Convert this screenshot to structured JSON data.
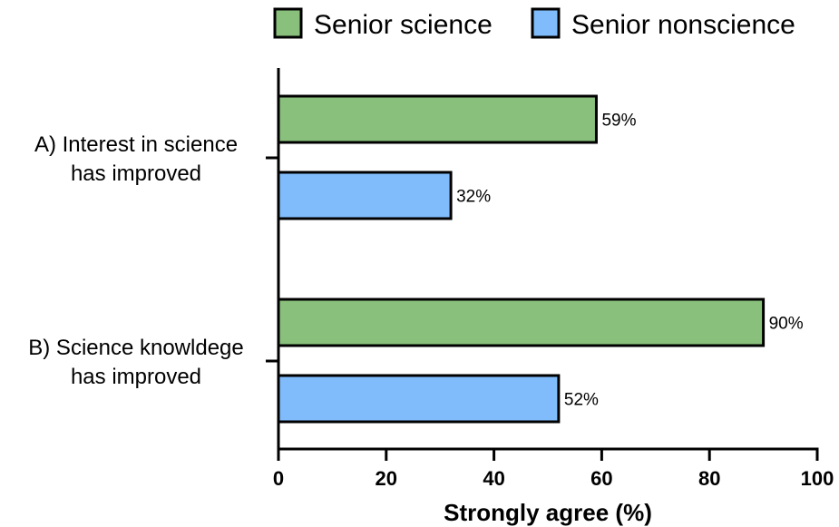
{
  "chart_data": {
    "type": "bar",
    "orientation": "horizontal",
    "categories": [
      [
        "A) Interest in science",
        "has improved"
      ],
      [
        "B) Science knowldege",
        "has improved"
      ]
    ],
    "series": [
      {
        "name": "Senior science",
        "color": "#88c07c",
        "values": [
          59,
          90
        ],
        "labels": [
          "59%",
          "90%"
        ]
      },
      {
        "name": "Senior nonscience",
        "color": "#80bcfb",
        "values": [
          32,
          52
        ],
        "labels": [
          "32%",
          "52%"
        ]
      }
    ],
    "xlabel": "Strongly agree (%)",
    "xlim": [
      0,
      100
    ],
    "xticks": [
      "0",
      "20",
      "40",
      "60",
      "80",
      "100"
    ],
    "legend_position": "top",
    "grid": false
  }
}
